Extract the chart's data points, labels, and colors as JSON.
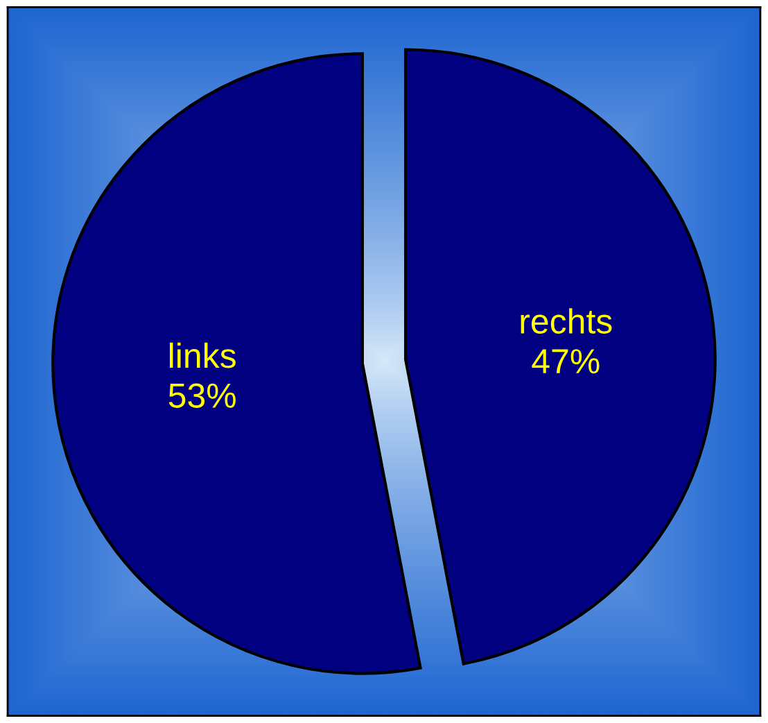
{
  "chart_data": {
    "type": "pie",
    "categories": [
      "rechts",
      "links"
    ],
    "values": [
      47,
      53
    ],
    "colors": [
      "#000080",
      "#000080"
    ],
    "value_labels": [
      "47%",
      "53%"
    ]
  }
}
